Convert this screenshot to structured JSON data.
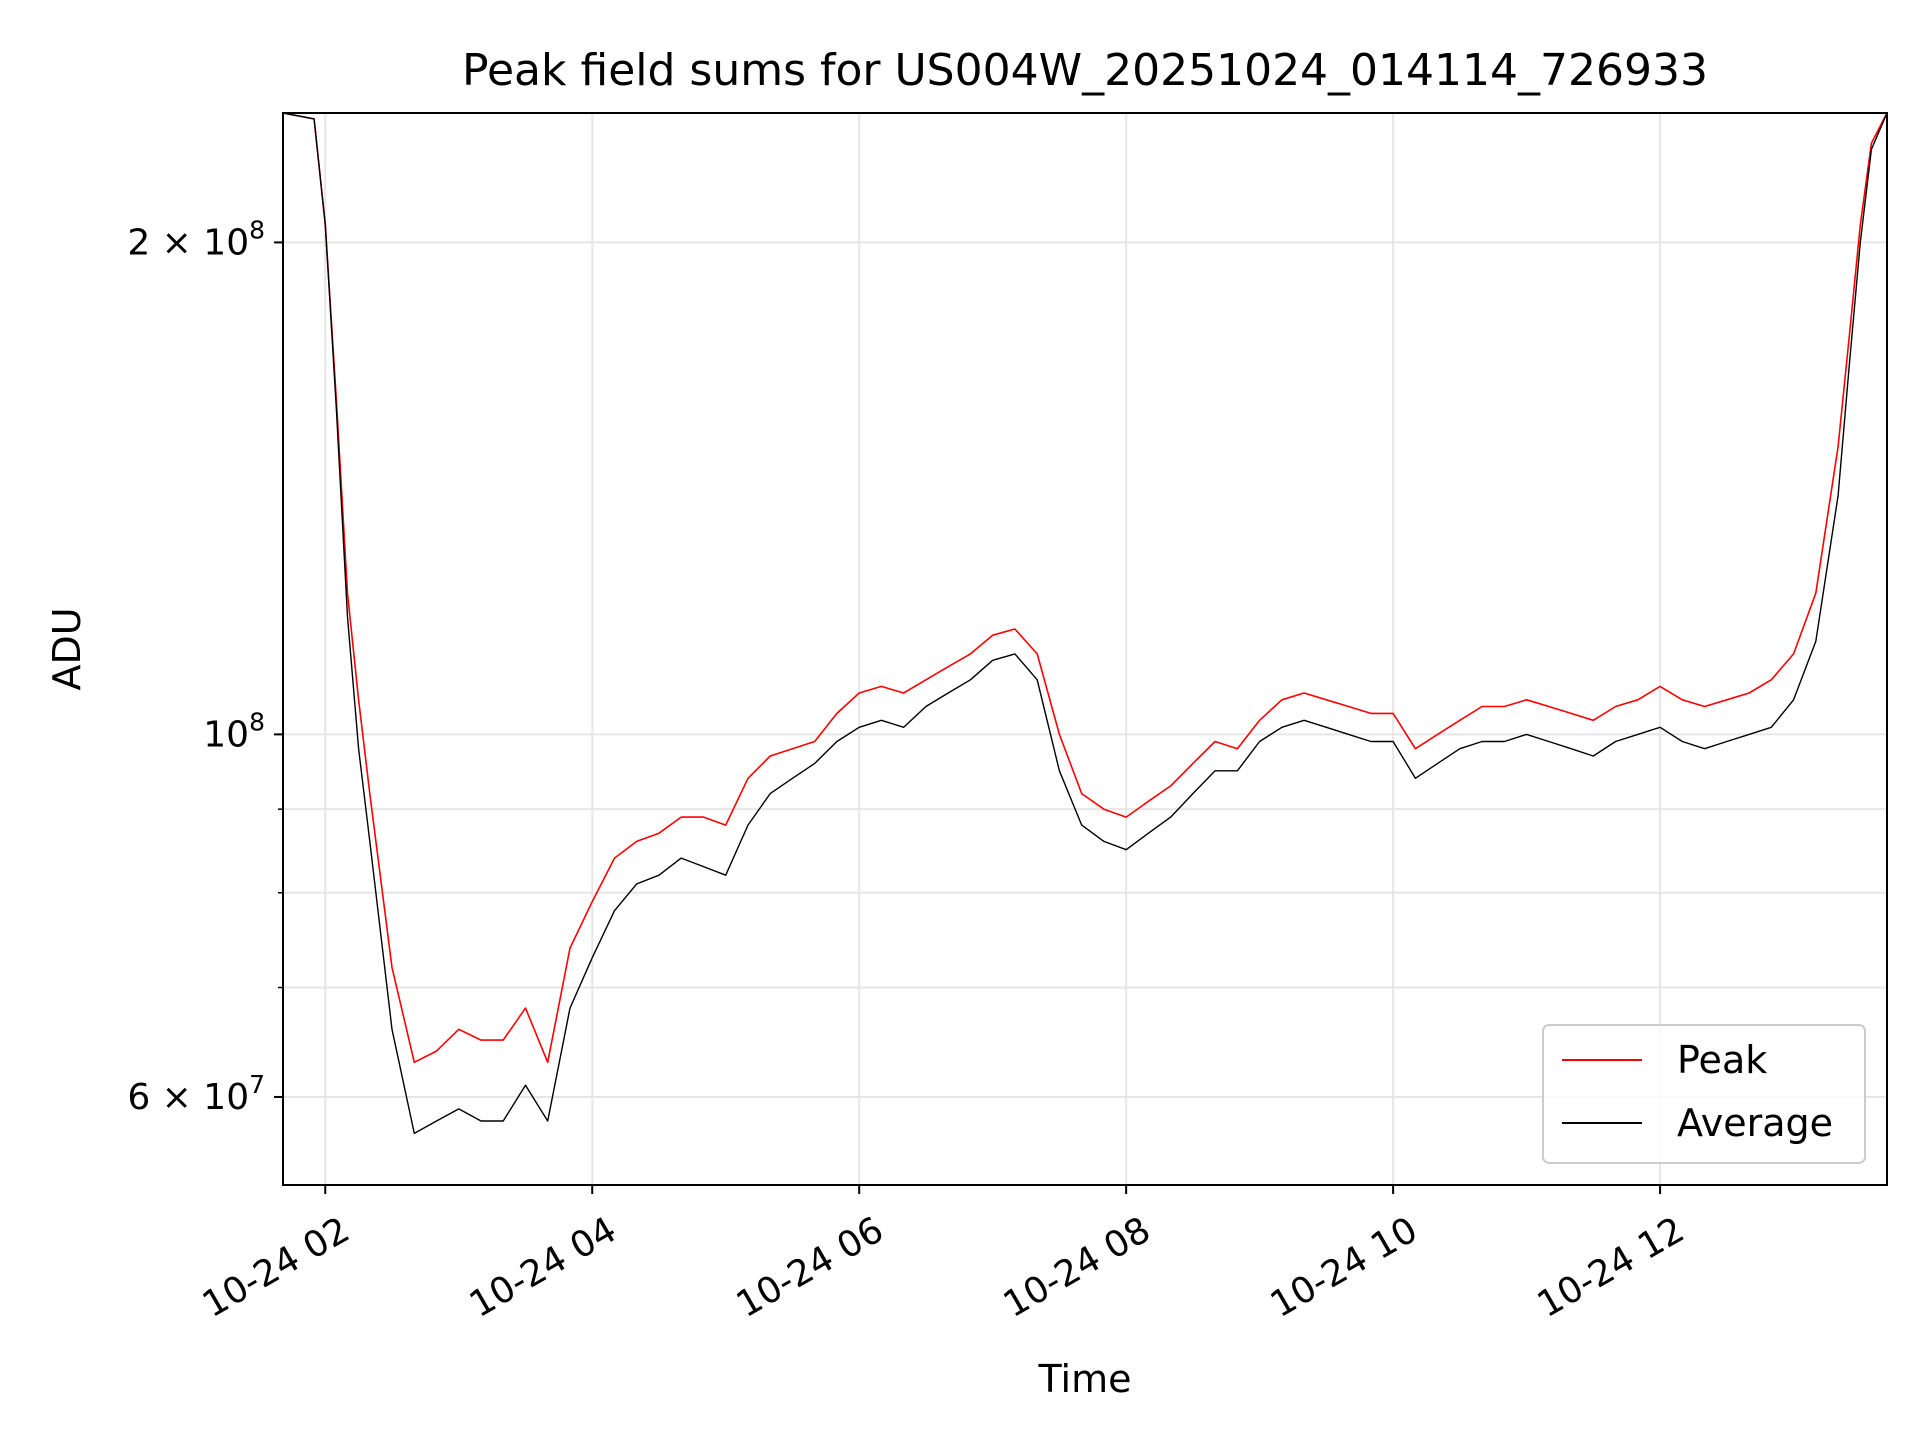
{
  "chart_data": {
    "type": "line",
    "title": "Peak field sums for US004W_20251024_014114_726933",
    "xlabel": "Time",
    "ylabel": "ADU",
    "y_scale": "log",
    "ylim": [
      53000000,
      240000000
    ],
    "xlim": [
      "2025-10-24T01:41:00",
      "2025-10-24T13:42:00"
    ],
    "grid": true,
    "legend_position": "lower-right",
    "x_ticks": [
      {
        "label": "10-24 02",
        "time": "2025-10-24T02:00:00"
      },
      {
        "label": "10-24 04",
        "time": "2025-10-24T04:00:00"
      },
      {
        "label": "10-24 06",
        "time": "2025-10-24T06:00:00"
      },
      {
        "label": "10-24 08",
        "time": "2025-10-24T08:00:00"
      },
      {
        "label": "10-24 10",
        "time": "2025-10-24T10:00:00"
      },
      {
        "label": "10-24 12",
        "time": "2025-10-24T12:00:00"
      }
    ],
    "y_ticks": [
      {
        "label_base": "6 × 10",
        "label_exp": "7",
        "value": 60000000
      },
      {
        "label_base": "10",
        "label_exp": "8",
        "value": 100000000
      },
      {
        "label_base": "2 × 10",
        "label_exp": "8",
        "value": 200000000
      }
    ],
    "y_minor_ticks": [
      70000000,
      80000000,
      90000000
    ],
    "series": [
      {
        "name": "Peak",
        "color": "#ff0000",
        "x": [
          "2025-10-24T01:41:00",
          "2025-10-24T01:55:00",
          "2025-10-24T02:00:00",
          "2025-10-24T02:05:00",
          "2025-10-24T02:10:00",
          "2025-10-24T02:15:00",
          "2025-10-24T02:20:00",
          "2025-10-24T02:30:00",
          "2025-10-24T02:40:00",
          "2025-10-24T02:50:00",
          "2025-10-24T03:00:00",
          "2025-10-24T03:10:00",
          "2025-10-24T03:20:00",
          "2025-10-24T03:30:00",
          "2025-10-24T03:40:00",
          "2025-10-24T03:50:00",
          "2025-10-24T04:00:00",
          "2025-10-24T04:10:00",
          "2025-10-24T04:20:00",
          "2025-10-24T04:30:00",
          "2025-10-24T04:40:00",
          "2025-10-24T04:50:00",
          "2025-10-24T05:00:00",
          "2025-10-24T05:10:00",
          "2025-10-24T05:20:00",
          "2025-10-24T05:30:00",
          "2025-10-24T05:40:00",
          "2025-10-24T05:50:00",
          "2025-10-24T06:00:00",
          "2025-10-24T06:10:00",
          "2025-10-24T06:20:00",
          "2025-10-24T06:30:00",
          "2025-10-24T06:40:00",
          "2025-10-24T06:50:00",
          "2025-10-24T07:00:00",
          "2025-10-24T07:10:00",
          "2025-10-24T07:20:00",
          "2025-10-24T07:30:00",
          "2025-10-24T07:40:00",
          "2025-10-24T07:50:00",
          "2025-10-24T08:00:00",
          "2025-10-24T08:10:00",
          "2025-10-24T08:20:00",
          "2025-10-24T08:30:00",
          "2025-10-24T08:40:00",
          "2025-10-24T08:50:00",
          "2025-10-24T09:00:00",
          "2025-10-24T09:10:00",
          "2025-10-24T09:20:00",
          "2025-10-24T09:30:00",
          "2025-10-24T09:40:00",
          "2025-10-24T09:50:00",
          "2025-10-24T10:00:00",
          "2025-10-24T10:10:00",
          "2025-10-24T10:20:00",
          "2025-10-24T10:30:00",
          "2025-10-24T10:40:00",
          "2025-10-24T10:50:00",
          "2025-10-24T11:00:00",
          "2025-10-24T11:10:00",
          "2025-10-24T11:20:00",
          "2025-10-24T11:30:00",
          "2025-10-24T11:40:00",
          "2025-10-24T11:50:00",
          "2025-10-24T12:00:00",
          "2025-10-24T12:10:00",
          "2025-10-24T12:20:00",
          "2025-10-24T12:30:00",
          "2025-10-24T12:40:00",
          "2025-10-24T12:50:00",
          "2025-10-24T13:00:00",
          "2025-10-24T13:10:00",
          "2025-10-24T13:20:00",
          "2025-10-24T13:25:00",
          "2025-10-24T13:30:00",
          "2025-10-24T13:35:00",
          "2025-10-24T13:42:00"
        ],
        "values": [
          240000000,
          238000000,
          205000000,
          160000000,
          122000000,
          105000000,
          92000000,
          72000000,
          63000000,
          64000000,
          66000000,
          65000000,
          65000000,
          68000000,
          63000000,
          74000000,
          79000000,
          84000000,
          86000000,
          87000000,
          89000000,
          89000000,
          88000000,
          94000000,
          97000000,
          98000000,
          99000000,
          103000000,
          106000000,
          107000000,
          106000000,
          108000000,
          110000000,
          112000000,
          115000000,
          116000000,
          112000000,
          100000000,
          92000000,
          90000000,
          89000000,
          91000000,
          93000000,
          96000000,
          99000000,
          98000000,
          102000000,
          105000000,
          106000000,
          105000000,
          104000000,
          103000000,
          103000000,
          98000000,
          100000000,
          102000000,
          104000000,
          104000000,
          105000000,
          104000000,
          103000000,
          102000000,
          104000000,
          105000000,
          107000000,
          105000000,
          104000000,
          105000000,
          106000000,
          108000000,
          112000000,
          122000000,
          150000000,
          175000000,
          205000000,
          230000000,
          240000000
        ]
      },
      {
        "name": "Average",
        "color": "#000000",
        "x": [
          "2025-10-24T01:41:00",
          "2025-10-24T01:55:00",
          "2025-10-24T02:00:00",
          "2025-10-24T02:05:00",
          "2025-10-24T02:10:00",
          "2025-10-24T02:15:00",
          "2025-10-24T02:20:00",
          "2025-10-24T02:30:00",
          "2025-10-24T02:40:00",
          "2025-10-24T02:50:00",
          "2025-10-24T03:00:00",
          "2025-10-24T03:10:00",
          "2025-10-24T03:20:00",
          "2025-10-24T03:30:00",
          "2025-10-24T03:40:00",
          "2025-10-24T03:50:00",
          "2025-10-24T04:00:00",
          "2025-10-24T04:10:00",
          "2025-10-24T04:20:00",
          "2025-10-24T04:30:00",
          "2025-10-24T04:40:00",
          "2025-10-24T04:50:00",
          "2025-10-24T05:00:00",
          "2025-10-24T05:10:00",
          "2025-10-24T05:20:00",
          "2025-10-24T05:30:00",
          "2025-10-24T05:40:00",
          "2025-10-24T05:50:00",
          "2025-10-24T06:00:00",
          "2025-10-24T06:10:00",
          "2025-10-24T06:20:00",
          "2025-10-24T06:30:00",
          "2025-10-24T06:40:00",
          "2025-10-24T06:50:00",
          "2025-10-24T07:00:00",
          "2025-10-24T07:10:00",
          "2025-10-24T07:20:00",
          "2025-10-24T07:30:00",
          "2025-10-24T07:40:00",
          "2025-10-24T07:50:00",
          "2025-10-24T08:00:00",
          "2025-10-24T08:10:00",
          "2025-10-24T08:20:00",
          "2025-10-24T08:30:00",
          "2025-10-24T08:40:00",
          "2025-10-24T08:50:00",
          "2025-10-24T09:00:00",
          "2025-10-24T09:10:00",
          "2025-10-24T09:20:00",
          "2025-10-24T09:30:00",
          "2025-10-24T09:40:00",
          "2025-10-24T09:50:00",
          "2025-10-24T10:00:00",
          "2025-10-24T10:10:00",
          "2025-10-24T10:20:00",
          "2025-10-24T10:30:00",
          "2025-10-24T10:40:00",
          "2025-10-24T10:50:00",
          "2025-10-24T11:00:00",
          "2025-10-24T11:10:00",
          "2025-10-24T11:20:00",
          "2025-10-24T11:30:00",
          "2025-10-24T11:40:00",
          "2025-10-24T11:50:00",
          "2025-10-24T12:00:00",
          "2025-10-24T12:10:00",
          "2025-10-24T12:20:00",
          "2025-10-24T12:30:00",
          "2025-10-24T12:40:00",
          "2025-10-24T12:50:00",
          "2025-10-24T13:00:00",
          "2025-10-24T13:10:00",
          "2025-10-24T13:20:00",
          "2025-10-24T13:25:00",
          "2025-10-24T13:30:00",
          "2025-10-24T13:35:00",
          "2025-10-24T13:42:00"
        ],
        "values": [
          240000000,
          238000000,
          205000000,
          158000000,
          118000000,
          98000000,
          86000000,
          66000000,
          57000000,
          58000000,
          59000000,
          58000000,
          58000000,
          61000000,
          58000000,
          68000000,
          73000000,
          78000000,
          81000000,
          82000000,
          84000000,
          83000000,
          82000000,
          88000000,
          92000000,
          94000000,
          96000000,
          99000000,
          101000000,
          102000000,
          101000000,
          104000000,
          106000000,
          108000000,
          111000000,
          112000000,
          108000000,
          95000000,
          88000000,
          86000000,
          85000000,
          87000000,
          89000000,
          92000000,
          95000000,
          95000000,
          99000000,
          101000000,
          102000000,
          101000000,
          100000000,
          99000000,
          99000000,
          94000000,
          96000000,
          98000000,
          99000000,
          99000000,
          100000000,
          99000000,
          98000000,
          97000000,
          99000000,
          100000000,
          101000000,
          99000000,
          98000000,
          99000000,
          100000000,
          101000000,
          105000000,
          114000000,
          140000000,
          168000000,
          200000000,
          228000000,
          240000000
        ]
      }
    ]
  }
}
